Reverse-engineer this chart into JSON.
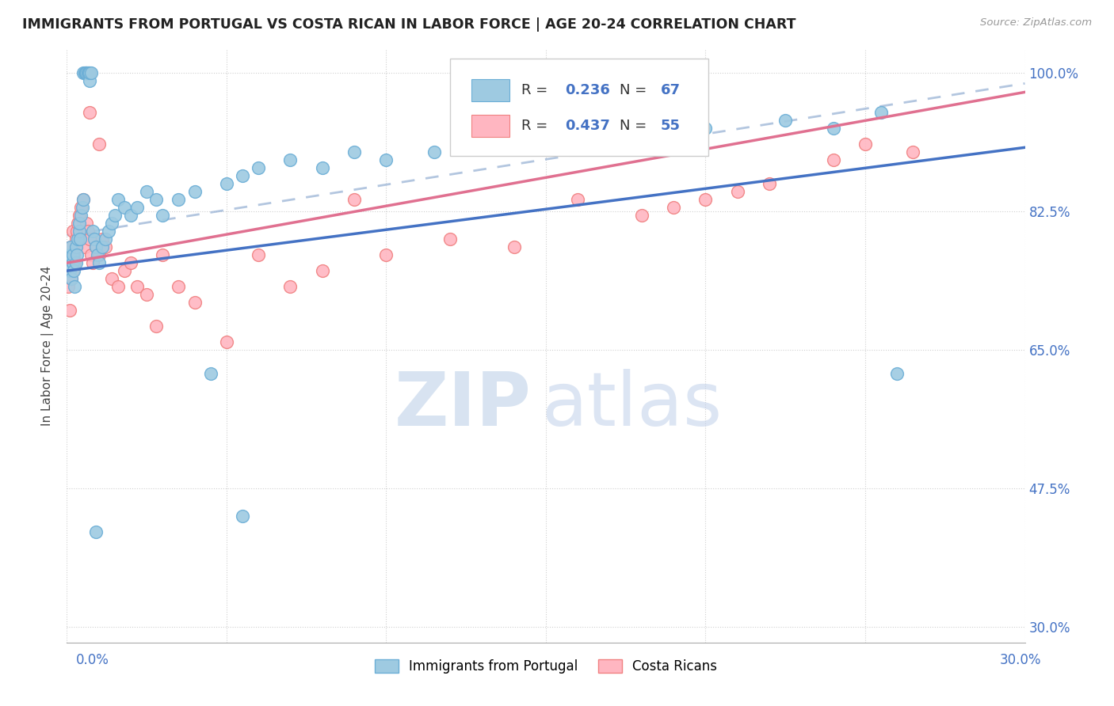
{
  "title": "IMMIGRANTS FROM PORTUGAL VS COSTA RICAN IN LABOR FORCE | AGE 20-24 CORRELATION CHART",
  "source": "Source: ZipAtlas.com",
  "ylabel": "In Labor Force | Age 20-24",
  "ytick_values": [
    30.0,
    47.5,
    65.0,
    82.5,
    100.0
  ],
  "ytick_labels": [
    "30.0%",
    "47.5%",
    "65.0%",
    "82.5%",
    "100.0%"
  ],
  "xlim": [
    0.0,
    30.0
  ],
  "ylim": [
    28.0,
    103.0
  ],
  "blue_scatter_color": "#9ecae1",
  "blue_edge_color": "#6baed6",
  "pink_scatter_color": "#ffb6c1",
  "pink_edge_color": "#f08080",
  "trend_blue_color": "#4472c4",
  "trend_pink_color": "#e07090",
  "dashed_color": "#a0b8d8",
  "watermark_zip_color": "#d0dff0",
  "watermark_atlas_color": "#c0d4ee",
  "grid_color": "#d0d0d0",
  "title_color": "#222222",
  "source_color": "#999999",
  "axis_label_color": "#4472c4",
  "legend_r1": "R = 0.236",
  "legend_n1": "N = 67",
  "legend_r2": "R = 0.437",
  "legend_n2": "N = 55",
  "legend_text_color": "#333333",
  "legend_val_color": "#4472c4",
  "blue_x": [
    0.05,
    0.08,
    0.1,
    0.12,
    0.15,
    0.18,
    0.2,
    0.22,
    0.25,
    0.28,
    0.3,
    0.32,
    0.35,
    0.38,
    0.4,
    0.42,
    0.45,
    0.48,
    0.5,
    0.52,
    0.55,
    0.58,
    0.6,
    0.62,
    0.65,
    0.68,
    0.7,
    0.72,
    0.75,
    0.8,
    0.85,
    0.9,
    0.95,
    1.0,
    1.1,
    1.2,
    1.3,
    1.4,
    1.5,
    1.6,
    1.8,
    2.0,
    2.2,
    2.5,
    2.8,
    3.0,
    3.5,
    4.0,
    5.0,
    5.5,
    6.0,
    7.0,
    8.0,
    9.0,
    10.0,
    11.5,
    13.0,
    15.0,
    18.0,
    20.0,
    22.5,
    24.0,
    25.5,
    26.0,
    4.5,
    5.5,
    0.9
  ],
  "blue_y": [
    76,
    77,
    75,
    78,
    74,
    76,
    77,
    75,
    73,
    76,
    78,
    77,
    79,
    80,
    81,
    79,
    82,
    83,
    84,
    100,
    100,
    100,
    100,
    100,
    100,
    100,
    99,
    100,
    100,
    80,
    79,
    78,
    77,
    76,
    78,
    79,
    80,
    81,
    82,
    84,
    83,
    82,
    83,
    85,
    84,
    82,
    84,
    85,
    86,
    87,
    88,
    89,
    88,
    90,
    89,
    90,
    91,
    92,
    93,
    93,
    94,
    93,
    95,
    62,
    62,
    44,
    42
  ],
  "pink_x": [
    0.05,
    0.08,
    0.1,
    0.12,
    0.15,
    0.18,
    0.2,
    0.22,
    0.25,
    0.28,
    0.3,
    0.32,
    0.35,
    0.4,
    0.45,
    0.5,
    0.55,
    0.6,
    0.65,
    0.7,
    0.75,
    0.8,
    0.9,
    1.0,
    1.1,
    1.2,
    1.4,
    1.6,
    1.8,
    2.0,
    2.2,
    2.5,
    3.0,
    3.5,
    4.0,
    5.0,
    6.0,
    7.0,
    8.0,
    9.0,
    10.0,
    12.0,
    14.0,
    16.0,
    18.0,
    19.0,
    20.0,
    21.0,
    22.0,
    24.0,
    25.0,
    26.5,
    2.8,
    0.7,
    1.0
  ],
  "pink_y": [
    73,
    76,
    70,
    78,
    74,
    80,
    75,
    77,
    76,
    79,
    78,
    80,
    81,
    82,
    83,
    84,
    78,
    81,
    80,
    79,
    77,
    76,
    78,
    77,
    79,
    78,
    74,
    73,
    75,
    76,
    73,
    72,
    77,
    73,
    71,
    66,
    77,
    73,
    75,
    84,
    77,
    79,
    78,
    84,
    82,
    83,
    84,
    85,
    86,
    89,
    91,
    90,
    68,
    95,
    91
  ]
}
